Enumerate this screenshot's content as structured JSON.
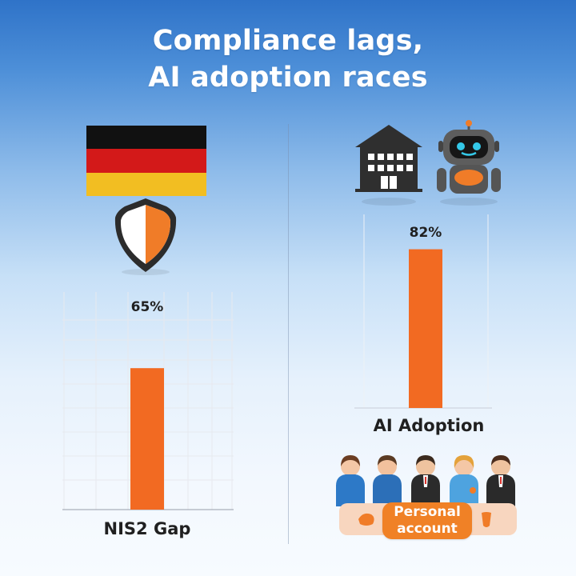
{
  "title": {
    "line1": "Compliance lags,",
    "line2": "AI adoption races"
  },
  "colors": {
    "bar": "#f26a22",
    "heading": "#ffffff",
    "accent": "#f08126",
    "text": "#202020"
  },
  "badges": {
    "personal_account": "Personal account"
  },
  "chart_data": [
    {
      "type": "bar",
      "categories": [
        "NIS2 Gap"
      ],
      "values": [
        65
      ],
      "value_labels": [
        "65%"
      ],
      "title": "",
      "xlabel": "",
      "ylabel": "",
      "ylim": [
        0,
        100
      ],
      "grid": true
    },
    {
      "type": "bar",
      "categories": [
        "AI Adoption"
      ],
      "values": [
        82
      ],
      "value_labels": [
        "82%"
      ],
      "title": "",
      "xlabel": "",
      "ylabel": "",
      "ylim": [
        0,
        100
      ],
      "grid": true
    }
  ]
}
